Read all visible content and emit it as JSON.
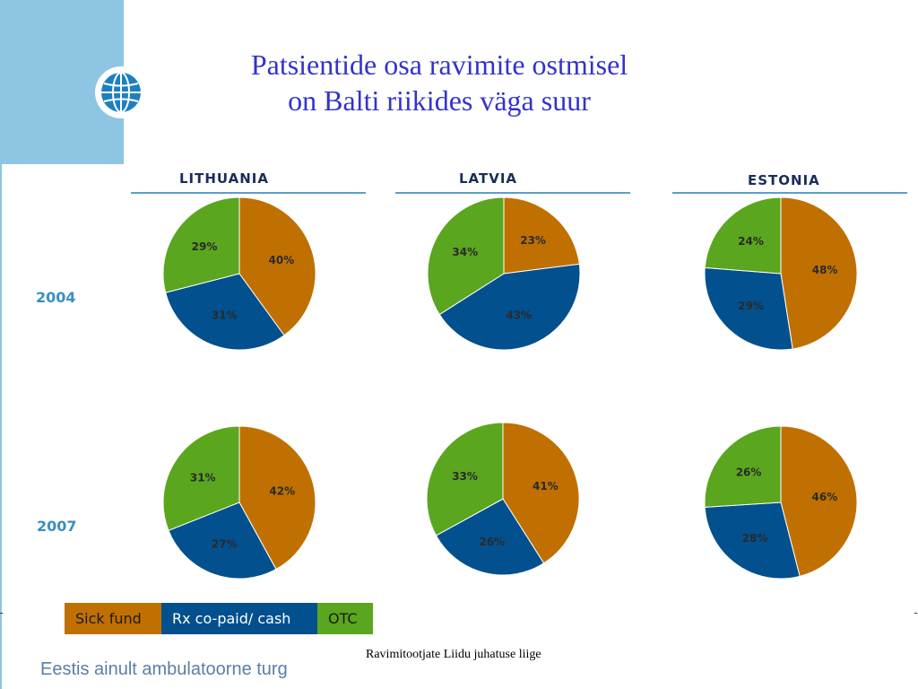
{
  "title_line1": "Patsientide osa ravimite ostmisel",
  "title_line2": "on Balti riikides väga suur",
  "footer_left": "Eestis ainult ambulatoorne turg",
  "footer_right": "Ravimitootjate Liidu juhatuse liige",
  "colors": {
    "sick_fund": "#c07000",
    "rx_copaid": "#02508e",
    "otc": "#5aa61e",
    "title": "#3333cc",
    "sidebar": "#8ec5e2"
  },
  "chart_data": {
    "type": "pie",
    "countries": [
      "LITHUANIA",
      "LATVIA",
      "ESTONIA"
    ],
    "years": [
      "2004",
      "2007"
    ],
    "categories": [
      "Sick fund",
      "Rx co-paid/ cash",
      "OTC"
    ],
    "series": [
      {
        "country": "LITHUANIA",
        "year": "2004",
        "values": [
          40,
          31,
          29
        ]
      },
      {
        "country": "LATVIA",
        "year": "2004",
        "values": [
          23,
          43,
          34
        ]
      },
      {
        "country": "ESTONIA",
        "year": "2004",
        "values": [
          48,
          29,
          24
        ]
      },
      {
        "country": "LITHUANIA",
        "year": "2007",
        "values": [
          42,
          27,
          31
        ]
      },
      {
        "country": "LATVIA",
        "year": "2007",
        "values": [
          41,
          26,
          33
        ]
      },
      {
        "country": "ESTONIA",
        "year": "2007",
        "values": [
          46,
          28,
          26
        ]
      }
    ]
  }
}
